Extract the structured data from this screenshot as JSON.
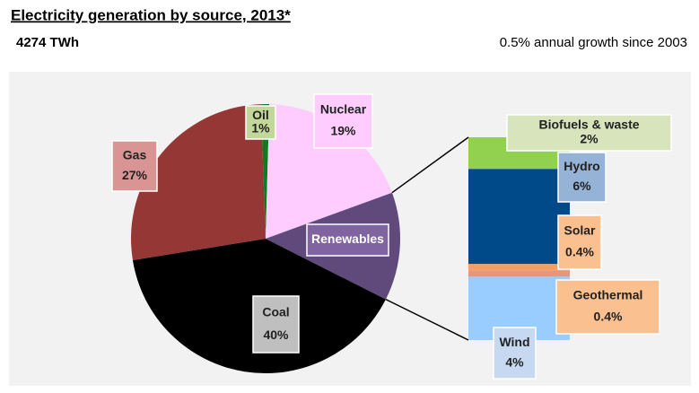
{
  "chart_data": {
    "type": "pie",
    "title": "Electricity generation by source, 2013*",
    "subtitle": "4274 TWh",
    "annotation": "0.5% annual growth since 2003",
    "categories": [
      "Oil",
      "Nuclear",
      "Renewables",
      "Coal",
      "Gas"
    ],
    "values": [
      1,
      19,
      13,
      40,
      27
    ],
    "value_labels": [
      "1%",
      "19%",
      null,
      "40%",
      "27%"
    ],
    "colors": [
      "#0a7d1e",
      "#ffccff",
      "#604a7b",
      "#000000",
      "#953735"
    ],
    "breakdown": {
      "type": "bar",
      "categories": [
        "Biofuels & waste",
        "Hydro",
        "Solar",
        "Geothermal",
        "Wind"
      ],
      "values": [
        2,
        6,
        0.4,
        0.4,
        4
      ],
      "value_labels": [
        "2%",
        "6%",
        "0.4%",
        "0.4%",
        "4%"
      ],
      "colors": [
        "#92d050",
        "#004a8a",
        "#f4a064",
        "#e8967a",
        "#99ccff"
      ]
    }
  }
}
